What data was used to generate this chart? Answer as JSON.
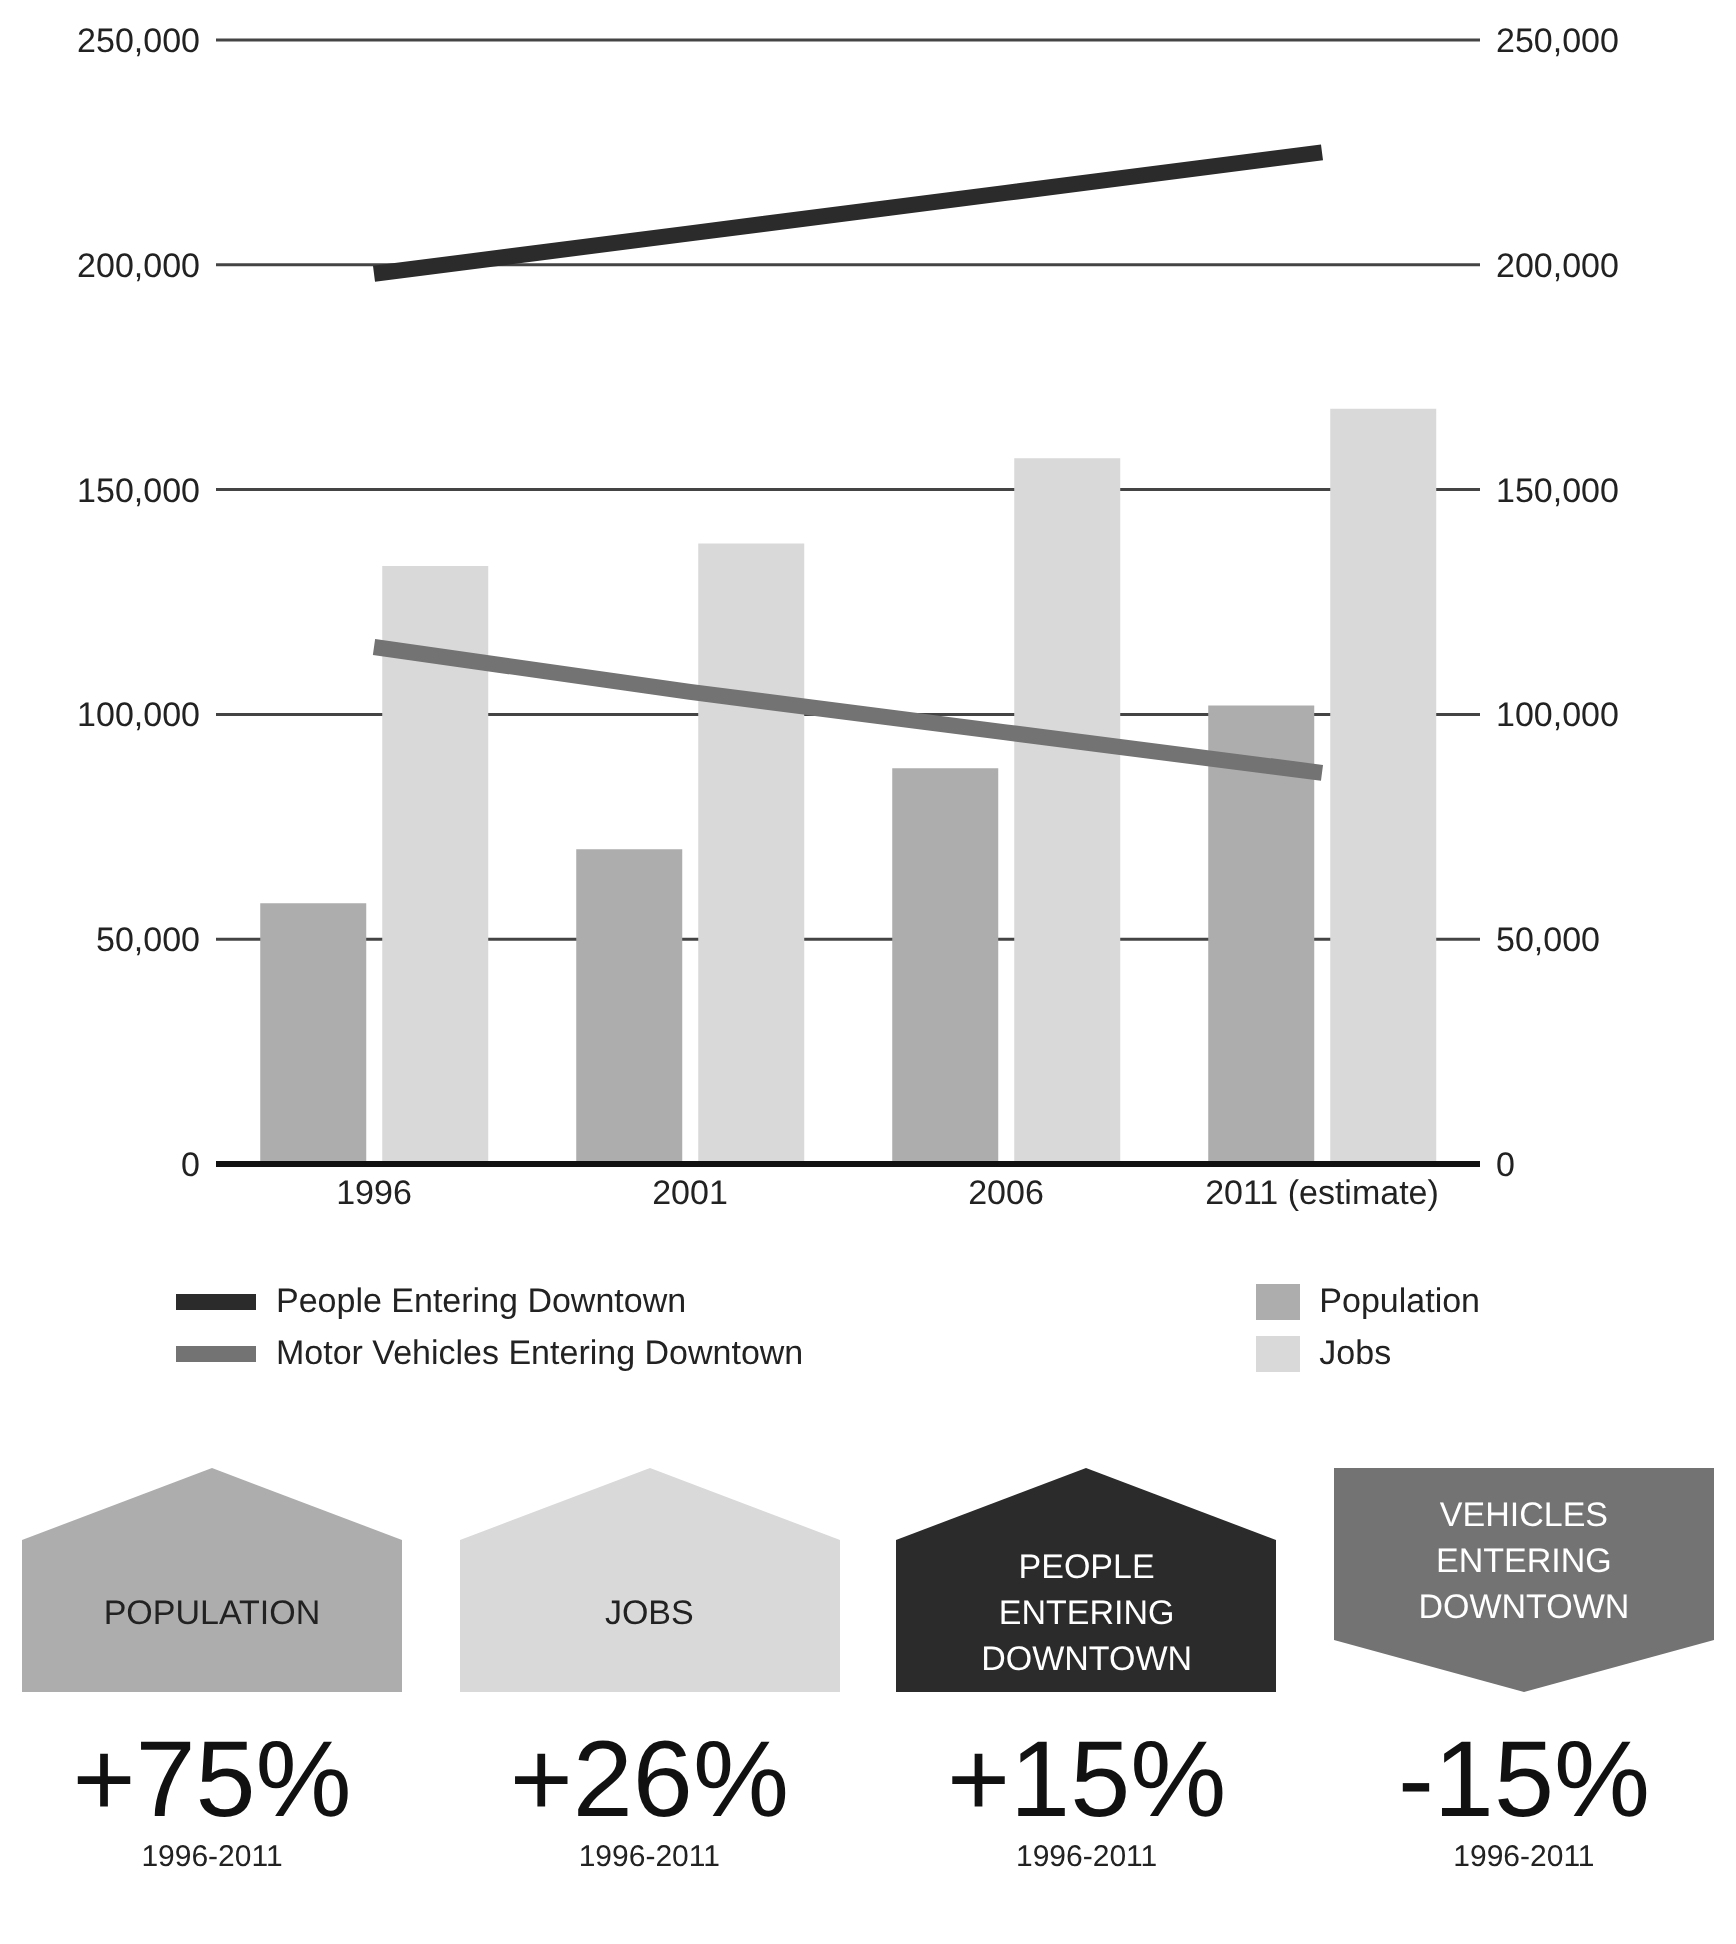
{
  "chart_data": {
    "type": "bar",
    "categories": [
      "1996",
      "2001",
      "2006",
      "2011 (estimate)"
    ],
    "series": [
      {
        "name": "Population",
        "color": "#adadad",
        "values": [
          58000,
          70000,
          88000,
          102000
        ]
      },
      {
        "name": "Jobs",
        "color": "#d9d9d9",
        "values": [
          133000,
          138000,
          157000,
          168000
        ]
      },
      {
        "name": "People Entering Downtown",
        "type": "line",
        "color": "#2b2b2b",
        "values": [
          198000,
          207000,
          216000,
          225000
        ]
      },
      {
        "name": "Motor Vehicles Entering Downtown",
        "type": "line",
        "color": "#737373",
        "values": [
          115000,
          105000,
          96000,
          87000
        ]
      }
    ],
    "ylim": [
      0,
      250000
    ],
    "yticks": [
      0,
      {
        "value": 50000,
        "label": "50,000"
      },
      {
        "value": 100000,
        "label": "100,000"
      },
      {
        "value": 150000,
        "label": "150,000"
      },
      {
        "value": 200000,
        "label": "200,000"
      },
      {
        "value": 250000,
        "label": "250,000"
      }
    ],
    "y2lim": [
      0,
      250000
    ],
    "y2ticks": [
      0,
      {
        "value": 50000,
        "label": "50,000"
      },
      {
        "value": 100000,
        "label": "100,000"
      },
      {
        "value": 150000,
        "label": "150,000"
      },
      {
        "value": 200000,
        "label": "200,000"
      },
      {
        "value": 250000,
        "label": "250,000"
      }
    ],
    "grid": "y",
    "legend": "bottom",
    "marker": "none",
    "line_style": "solid",
    "annotations": [
      "POPULATION",
      "+75%",
      "1996-2011",
      "JOBS",
      "+26%",
      "1996-2011",
      "PEOPLE ENTERING DOWNTOWN",
      "+15%",
      "1996-2011",
      "VEHICLES ENTERING DOWNTOWN",
      "-15%",
      "1996-2011"
    ]
  }
}
